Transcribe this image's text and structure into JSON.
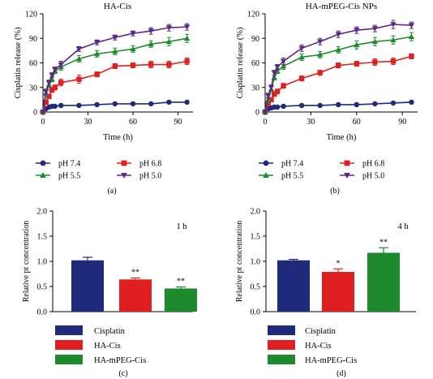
{
  "colors": {
    "navy": "#1f2a7a",
    "red": "#e02020",
    "green": "#1e8a2e",
    "purple": "#5b2a86",
    "axis": "#000000"
  },
  "chart_data": [
    {
      "id": "a",
      "type": "line",
      "title": "HA-Cis",
      "xlabel": "Time (h)",
      "ylabel": "Cisplatin release (%)",
      "xlim": [
        0,
        100
      ],
      "ylim": [
        0,
        120
      ],
      "xticks": [
        "0",
        "30",
        "60",
        "90"
      ],
      "yticks": [
        "0",
        "30",
        "60",
        "90",
        "120"
      ],
      "panel_label": "(a)",
      "legend_position": "bottom",
      "series": [
        {
          "name": "pH 7.4",
          "color": "#1f2a7a",
          "marker": "circle",
          "x": [
            0,
            2,
            4,
            6,
            8,
            12,
            24,
            36,
            48,
            60,
            72,
            84,
            96
          ],
          "y": [
            0,
            4,
            6,
            7,
            7,
            8,
            8,
            9,
            10,
            10,
            10,
            12,
            12
          ],
          "err": [
            0,
            0,
            0,
            0,
            0,
            1,
            1,
            0,
            0,
            0,
            1,
            1,
            1
          ]
        },
        {
          "name": "pH 6.8",
          "color": "#e02020",
          "marker": "square",
          "x": [
            0,
            2,
            4,
            6,
            8,
            12,
            24,
            36,
            48,
            60,
            72,
            84,
            96
          ],
          "y": [
            0,
            12,
            19,
            27,
            30,
            36,
            40,
            46,
            56,
            57,
            58,
            58,
            62
          ],
          "err": [
            0,
            2,
            2,
            3,
            3,
            4,
            5,
            3,
            3,
            3,
            4,
            4,
            4
          ]
        },
        {
          "name": "pH 5.5",
          "color": "#1e8a2e",
          "marker": "triangle-up",
          "x": [
            0,
            2,
            4,
            6,
            8,
            12,
            24,
            36,
            48,
            60,
            72,
            84,
            96
          ],
          "y": [
            0,
            23,
            33,
            40,
            50,
            55,
            65,
            71,
            74,
            77,
            83,
            86,
            90
          ],
          "err": [
            0,
            3,
            3,
            3,
            3,
            4,
            4,
            4,
            4,
            4,
            4,
            5,
            5
          ]
        },
        {
          "name": "pH 5.0",
          "color": "#5b2a86",
          "marker": "triangle-down",
          "x": [
            0,
            2,
            4,
            6,
            8,
            12,
            24,
            36,
            48,
            60,
            72,
            84,
            96
          ],
          "y": [
            0,
            25,
            36,
            45,
            52,
            58,
            77,
            85,
            91,
            96,
            99,
            103,
            104
          ],
          "err": [
            0,
            3,
            3,
            3,
            3,
            4,
            3,
            3,
            3,
            3,
            4,
            4,
            4
          ]
        }
      ]
    },
    {
      "id": "b",
      "type": "line",
      "title": "HA-mPEG-Cis NPs",
      "xlabel": "Time (h)",
      "ylabel": "Cisplatin release (%)",
      "xlim": [
        0,
        100
      ],
      "ylim": [
        0,
        120
      ],
      "xticks": [
        "0",
        "30",
        "60",
        "90"
      ],
      "yticks": [
        "0",
        "30",
        "60",
        "90",
        "120"
      ],
      "panel_label": "(b)",
      "legend_position": "bottom",
      "series": [
        {
          "name": "pH 7.4",
          "color": "#1f2a7a",
          "marker": "circle",
          "x": [
            0,
            2,
            4,
            6,
            8,
            12,
            24,
            36,
            48,
            60,
            72,
            84,
            96
          ],
          "y": [
            0,
            4,
            5,
            6,
            6,
            7,
            8,
            8,
            9,
            9,
            10,
            11,
            12
          ],
          "err": [
            0,
            0,
            0,
            0,
            0,
            1,
            1,
            1,
            1,
            1,
            1,
            1,
            1
          ]
        },
        {
          "name": "pH 6.8",
          "color": "#e02020",
          "marker": "square",
          "x": [
            0,
            2,
            4,
            6,
            8,
            12,
            24,
            36,
            48,
            60,
            72,
            84,
            96
          ],
          "y": [
            0,
            10,
            15,
            22,
            25,
            32,
            41,
            48,
            57,
            59,
            61,
            62,
            68
          ],
          "err": [
            0,
            2,
            2,
            3,
            3,
            3,
            3,
            3,
            3,
            3,
            4,
            4,
            3
          ]
        },
        {
          "name": "pH 5.5",
          "color": "#1e8a2e",
          "marker": "triangle-up",
          "x": [
            0,
            2,
            4,
            6,
            8,
            12,
            24,
            36,
            48,
            60,
            72,
            84,
            96
          ],
          "y": [
            0,
            15,
            28,
            42,
            50,
            56,
            67,
            70,
            76,
            82,
            86,
            88,
            92
          ],
          "err": [
            0,
            3,
            3,
            3,
            3,
            4,
            4,
            4,
            4,
            5,
            5,
            5,
            5
          ]
        },
        {
          "name": "pH 5.0",
          "color": "#5b2a86",
          "marker": "triangle-down",
          "x": [
            0,
            2,
            4,
            6,
            8,
            12,
            24,
            36,
            48,
            60,
            72,
            84,
            96
          ],
          "y": [
            0,
            20,
            30,
            48,
            55,
            62,
            78,
            86,
            95,
            100,
            102,
            107,
            106
          ],
          "err": [
            0,
            3,
            3,
            3,
            3,
            4,
            4,
            4,
            4,
            4,
            4,
            5,
            4
          ]
        }
      ]
    },
    {
      "id": "c",
      "type": "bar",
      "annotation": "1 h",
      "ylabel": "Relative pt concentration",
      "ylim": [
        0,
        2.0
      ],
      "yticks": [
        "0.0",
        "0.5",
        "1.0",
        "1.5",
        "2.0"
      ],
      "panel_label": "(c)",
      "legend_position": "bottom",
      "categories": [
        "Cisplatin",
        "HA-Cis",
        "HA-mPEG-Cis"
      ],
      "colors": [
        "#1f2a7a",
        "#e02020",
        "#1e8a2e"
      ],
      "values": [
        1.02,
        0.64,
        0.46
      ],
      "err": [
        0.06,
        0.03,
        0.03
      ],
      "significance": [
        "",
        "**",
        "**"
      ]
    },
    {
      "id": "d",
      "type": "bar",
      "annotation": "4 h",
      "ylabel": "Relative pt concentration",
      "ylim": [
        0,
        2.0
      ],
      "yticks": [
        "0.0",
        "0.5",
        "1.0",
        "1.5",
        "2.0"
      ],
      "panel_label": "(d)",
      "legend_position": "bottom",
      "categories": [
        "Cisplatin",
        "HA-Cis",
        "HA-mPEG-Cis"
      ],
      "colors": [
        "#1f2a7a",
        "#e02020",
        "#1e8a2e"
      ],
      "values": [
        1.02,
        0.79,
        1.17
      ],
      "err": [
        0.02,
        0.06,
        0.1
      ],
      "significance": [
        "",
        "*",
        "**"
      ]
    }
  ]
}
